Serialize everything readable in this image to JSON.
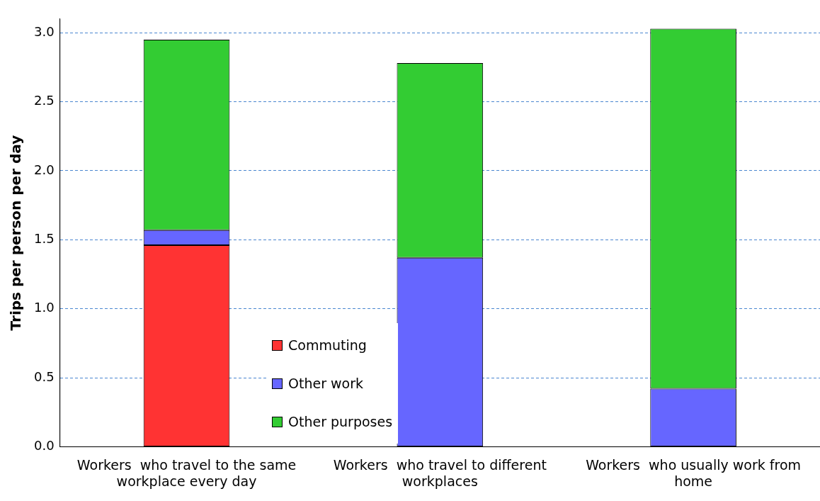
{
  "chart_data": {
    "type": "bar",
    "ylabel": "Trips per person per day",
    "categories": [
      "Workers  who travel to the same workplace every day",
      "Workers  who travel to different workplaces",
      "Workers  who usually work from home"
    ],
    "series": [
      {
        "name": "Commuting",
        "color": "#ff3333",
        "values": [
          1.46,
          0,
          0
        ]
      },
      {
        "name": "Other work",
        "color": "#6666ff",
        "values": [
          0.11,
          1.37,
          0.42
        ]
      },
      {
        "name": "Other purposes",
        "color": "#33cc33",
        "values": [
          1.38,
          1.41,
          2.61
        ]
      }
    ],
    "stacked": true,
    "ylim": [
      0,
      3.1
    ],
    "yticks": [
      {
        "value": 0,
        "label": "0.0"
      },
      0.5,
      {
        "value": 1,
        "label": "1.0"
      },
      1.5,
      {
        "value": 2,
        "label": "2.0"
      },
      2.5,
      {
        "value": 3,
        "label": "3.0"
      }
    ],
    "grid": "y",
    "legend": "bottom left"
  }
}
